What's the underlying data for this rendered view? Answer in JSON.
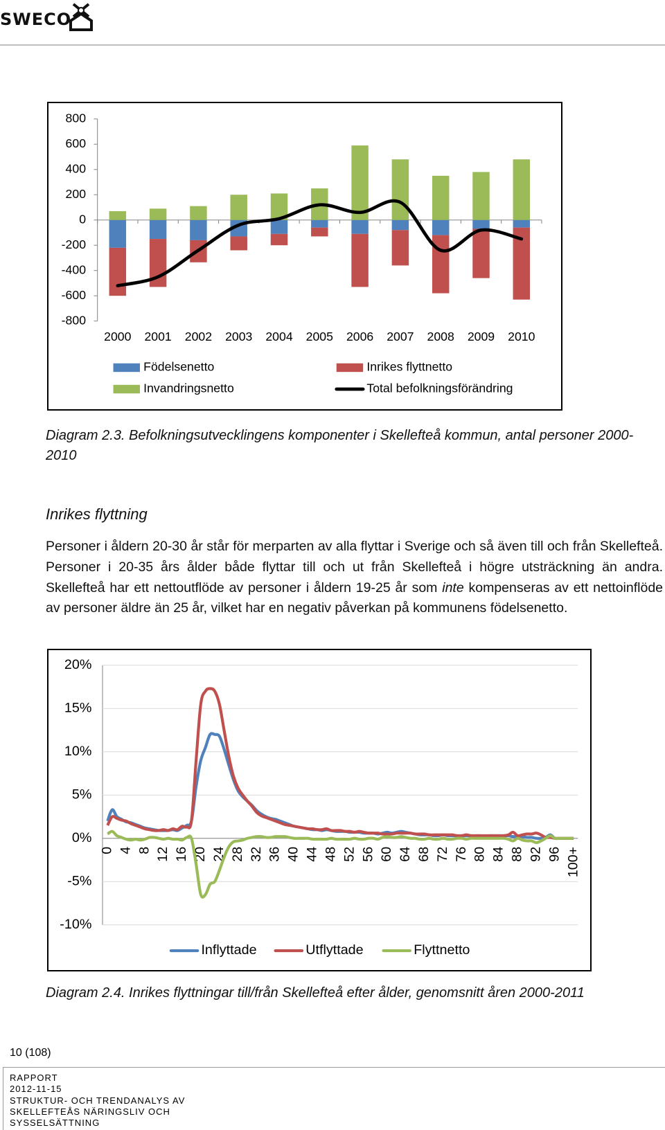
{
  "header": {
    "logo": "SWECO"
  },
  "chart_data": [
    {
      "type": "bar",
      "stacked": true,
      "grid": false,
      "categories": [
        "2000",
        "2001",
        "2002",
        "2003",
        "2004",
        "2005",
        "2006",
        "2007",
        "2008",
        "2009",
        "2010"
      ],
      "ylim": [
        -800,
        800
      ],
      "yticks": [
        -800,
        -600,
        -400,
        -200,
        0,
        200,
        400,
        600,
        800
      ],
      "series": [
        {
          "name": "Födelsenetto",
          "color": "#4f81bd",
          "values": [
            -220,
            -150,
            -160,
            -130,
            -110,
            -60,
            -110,
            -80,
            -120,
            -70,
            -60
          ]
        },
        {
          "name": "Inrikes flyttnetto",
          "color": "#c0504d",
          "values": [
            -380,
            -380,
            -175,
            -110,
            -90,
            -70,
            -420,
            -280,
            -460,
            -390,
            -570
          ]
        },
        {
          "name": "Invandringsnetto",
          "color": "#9bbb59",
          "values": [
            70,
            90,
            110,
            200,
            210,
            250,
            590,
            480,
            350,
            380,
            480
          ]
        },
        {
          "name": "Total befolkningsförändring",
          "color": "#000000",
          "type": "line",
          "values": [
            -520,
            -450,
            -240,
            -40,
            10,
            120,
            60,
            140,
            -240,
            -80,
            -150
          ]
        }
      ]
    },
    {
      "type": "line",
      "grid": true,
      "categories": [
        "0",
        null,
        null,
        null,
        "4",
        null,
        null,
        null,
        "8",
        null,
        null,
        null,
        "12",
        null,
        null,
        null,
        "16",
        null,
        null,
        null,
        "20",
        null,
        null,
        null,
        "24",
        null,
        null,
        null,
        "28",
        null,
        null,
        null,
        "32",
        null,
        null,
        null,
        "36",
        null,
        null,
        null,
        "40",
        null,
        null,
        null,
        "44",
        null,
        null,
        null,
        "48",
        null,
        null,
        null,
        "52",
        null,
        null,
        null,
        "56",
        null,
        null,
        null,
        "60",
        null,
        null,
        null,
        "64",
        null,
        null,
        null,
        "68",
        null,
        null,
        null,
        "72",
        null,
        null,
        null,
        "76",
        null,
        null,
        null,
        "80",
        null,
        null,
        null,
        "84",
        null,
        null,
        null,
        "88",
        null,
        null,
        null,
        "92",
        null,
        null,
        null,
        "96",
        null,
        null,
        null,
        "100+"
      ],
      "ylim": [
        -10,
        20
      ],
      "yticks": [
        {
          "value": -10,
          "label": "-10%"
        },
        {
          "value": -5,
          "label": "-5%"
        },
        {
          "value": 0,
          "label": "0%"
        },
        {
          "value": 5,
          "label": "5%"
        },
        {
          "value": 10,
          "label": "10%"
        },
        {
          "value": 15,
          "label": "15%"
        },
        {
          "value": 20,
          "label": "20%"
        }
      ],
      "series": [
        {
          "name": "Inflyttade",
          "color": "#4f81bd",
          "values": [
            2.0,
            3.3,
            2.5,
            2.2,
            1.9,
            1.8,
            1.6,
            1.4,
            1.2,
            1.1,
            1.0,
            0.9,
            0.9,
            0.9,
            1.0,
            0.9,
            1.2,
            1.5,
            2.0,
            6.0,
            9.0,
            10.5,
            12.0,
            12.0,
            11.8,
            10.3,
            8.5,
            6.8,
            5.5,
            4.8,
            4.3,
            3.8,
            3.2,
            2.8,
            2.5,
            2.3,
            2.2,
            2.0,
            1.8,
            1.6,
            1.4,
            1.3,
            1.2,
            1.1,
            1.0,
            1.0,
            0.9,
            1.0,
            0.9,
            0.8,
            0.8,
            0.8,
            0.7,
            0.7,
            0.7,
            0.6,
            0.6,
            0.6,
            0.5,
            0.6,
            0.7,
            0.6,
            0.7,
            0.8,
            0.7,
            0.6,
            0.5,
            0.4,
            0.4,
            0.4,
            0.3,
            0.3,
            0.4,
            0.3,
            0.3,
            0.3,
            0.3,
            0.3,
            0.3,
            0.3,
            0.3,
            0.2,
            0.3,
            0.3,
            0.3,
            0.3,
            0.3,
            0.2,
            0.2,
            0.2,
            0.1,
            0.1,
            0,
            0,
            0.1,
            0.4,
            0,
            0,
            0,
            0,
            0
          ]
        },
        {
          "name": "Utflyttade",
          "color": "#c0504d",
          "values": [
            1.5,
            2.5,
            2.3,
            2.1,
            2.0,
            1.7,
            1.5,
            1.3,
            1.1,
            1.0,
            0.9,
            0.9,
            1.0,
            0.9,
            1.1,
            1.0,
            1.4,
            1.3,
            2.0,
            9.0,
            15.5,
            17.0,
            17.3,
            17.0,
            15.5,
            12.5,
            9.5,
            7.2,
            5.8,
            5.0,
            4.3,
            3.7,
            3.0,
            2.6,
            2.4,
            2.2,
            2.0,
            1.8,
            1.6,
            1.5,
            1.4,
            1.3,
            1.2,
            1.1,
            1.1,
            1.0,
            1.0,
            1.1,
            0.9,
            0.9,
            0.9,
            0.8,
            0.8,
            0.7,
            0.8,
            0.7,
            0.6,
            0.6,
            0.6,
            0.5,
            0.5,
            0.5,
            0.6,
            0.6,
            0.6,
            0.6,
            0.5,
            0.5,
            0.5,
            0.4,
            0.4,
            0.4,
            0.4,
            0.4,
            0.4,
            0.3,
            0.3,
            0.4,
            0.3,
            0.3,
            0.3,
            0.3,
            0.3,
            0.3,
            0.3,
            0.3,
            0.4,
            0.7,
            0.3,
            0.4,
            0.5,
            0.5,
            0.6,
            0.4,
            0.1,
            0.1,
            0,
            0,
            0,
            0,
            0
          ]
        },
        {
          "name": "Flyttnetto",
          "color": "#9bbb59",
          "values": [
            0.5,
            0.8,
            0.3,
            0.1,
            -0.1,
            -0.2,
            -0.1,
            -0.2,
            -0.1,
            0.1,
            0.1,
            0,
            -0.1,
            0,
            -0.1,
            -0.1,
            -0.2,
            0.1,
            0,
            -3.0,
            -6.5,
            -6.5,
            -5.3,
            -5.0,
            -3.7,
            -2.2,
            -1.0,
            -0.4,
            -0.3,
            -0.2,
            0,
            0.1,
            0.2,
            0.2,
            0.1,
            0.1,
            0.2,
            0.2,
            0.2,
            0.1,
            0,
            0,
            0,
            0,
            -0.1,
            -0.1,
            -0.1,
            -0.1,
            0,
            -0.1,
            -0.1,
            -0.1,
            -0.1,
            0,
            -0.1,
            -0.1,
            0,
            0,
            -0.1,
            0.1,
            0.2,
            0.1,
            0.1,
            0.2,
            0.1,
            0,
            0,
            -0.1,
            -0.1,
            0,
            -0.1,
            -0.1,
            0,
            -0.1,
            -0.1,
            0,
            0,
            -0.1,
            0,
            0,
            0,
            0,
            0,
            0,
            0,
            0,
            -0.1,
            -0.3,
            0,
            -0.2,
            -0.3,
            -0.3,
            -0.5,
            -0.3,
            0,
            0.3,
            0,
            0,
            0,
            0,
            0
          ]
        }
      ]
    }
  ],
  "captions": [
    "Diagram 2.3. Befolkningsutvecklingens komponenter i Skellefteå kommun, antal personer 2000-2010",
    "Diagram 2.4. Inrikes flyttningar till/från Skellefteå efter ålder, genomsnitt åren 2000-2011"
  ],
  "body": {
    "heading": "Inrikes flyttning",
    "paragraph": [
      "Personer i åldern 20-30 år står för merparten av alla flyttar i Sverige och så även till och från Skellefteå. Personer i 20-35 års ålder både flyttar till och ut från Skellefteå i högre utsträckning än andra. Skellefteå har ett nettoutflöde av personer i åldern 19-25 år som",
      "inte",
      "kompenseras av ett nettoinflöde av personer äldre än 25 år, vilket har en negativ påverkan på kommunens födelsenetto."
    ]
  },
  "footer": {
    "page": "10 (108)",
    "lines": [
      "RAPPORT",
      "2012-11-15",
      "STRUKTUR- OCH TRENDANALYS AV",
      "SKELLEFTEÅS NÄRINGSLIV OCH",
      "SYSSELSÄTTNING"
    ]
  }
}
